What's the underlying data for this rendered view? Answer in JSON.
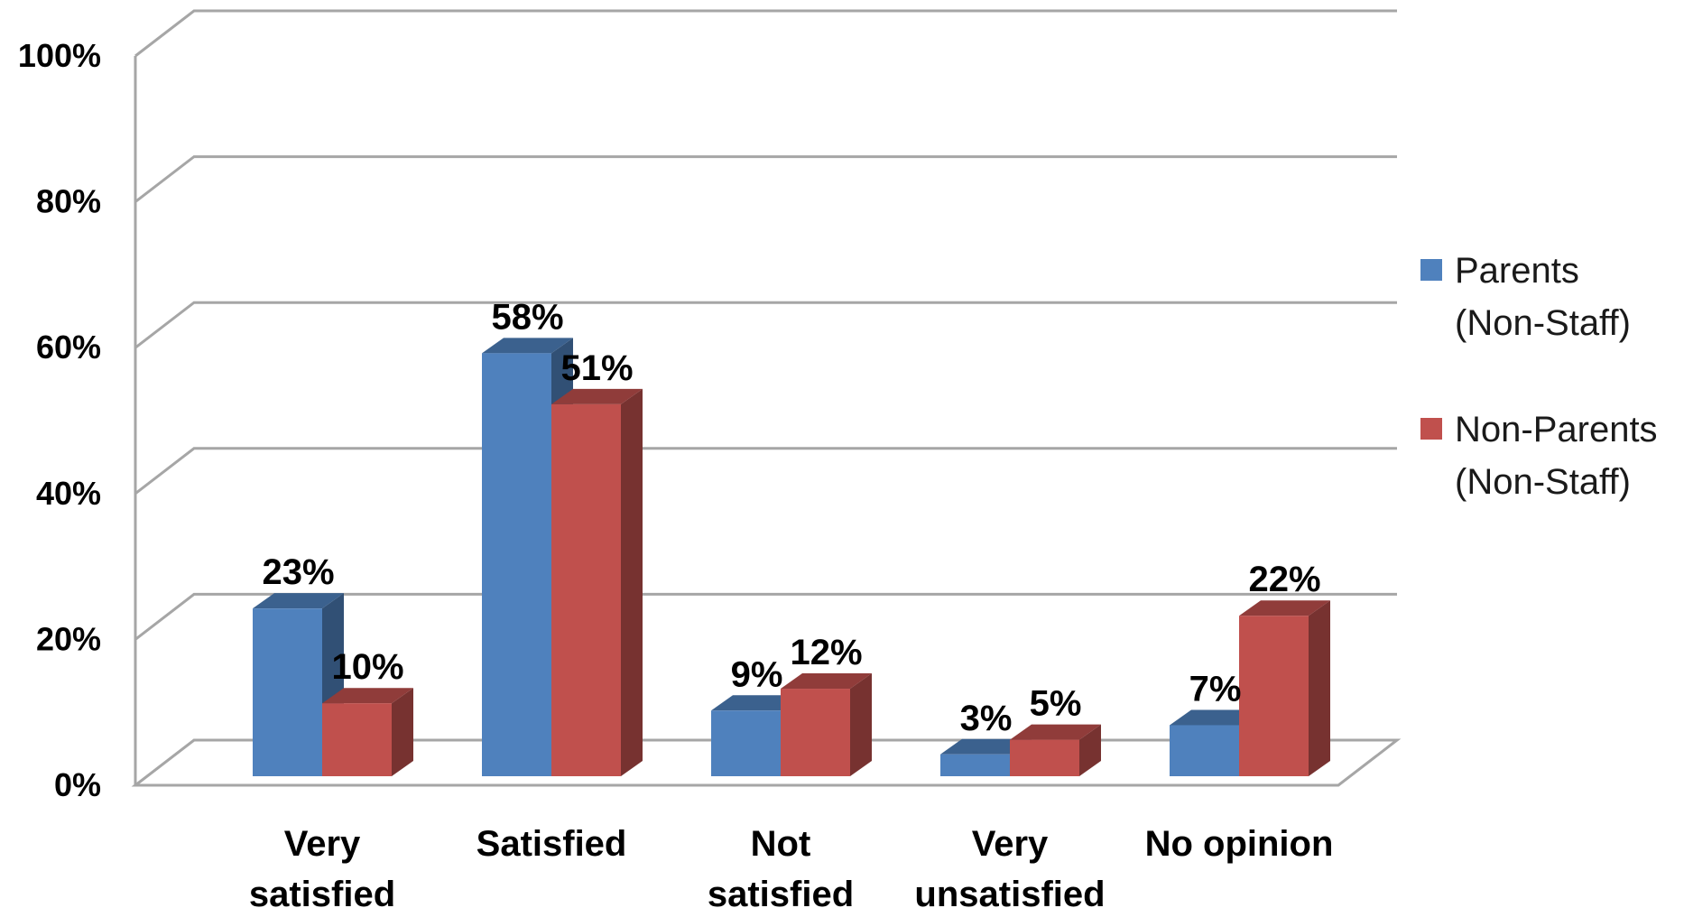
{
  "chart_data": {
    "type": "bar",
    "style": "3d-clustered-column",
    "categories": [
      [
        "Very",
        "satisfied"
      ],
      [
        "Satisfied"
      ],
      [
        "Not",
        "satisfied"
      ],
      [
        "Very",
        "unsatisfied"
      ],
      [
        "No opinion"
      ]
    ],
    "series": [
      {
        "name": [
          "Parents",
          "(Non-Staff)"
        ],
        "color": "#4f81bd",
        "values": [
          23,
          58,
          9,
          3,
          7
        ],
        "labels": [
          "23%",
          "58%",
          "9%",
          "3%",
          "7%"
        ]
      },
      {
        "name": [
          "Non-Parents",
          "(Non-Staff)"
        ],
        "color": "#c0504d",
        "values": [
          10,
          51,
          12,
          5,
          22
        ],
        "labels": [
          "10%",
          "51%",
          "12%",
          "5%",
          "22%"
        ]
      }
    ],
    "ylim": [
      0,
      100
    ],
    "yticks": [
      "0%",
      "20%",
      "40%",
      "60%",
      "80%",
      "100%"
    ],
    "grid": true,
    "legend_position": "right"
  }
}
